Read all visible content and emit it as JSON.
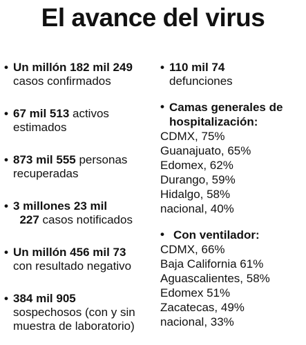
{
  "title": "El avance del virus",
  "bullet": "•",
  "left_items": [
    {
      "l1b": "Un millón 182 mil 249",
      "l2": "casos confirmados"
    },
    {
      "l1b": "67 mil 513",
      "l1r": " activos",
      "l2": "estimados"
    },
    {
      "l1b": "873 mil 555",
      "l1r": " personas",
      "l2": "recuperadas"
    },
    {
      "l1b": "3 millones 23 mil",
      "l2b": "227",
      "l2": " casos notificados"
    },
    {
      "l1b": "Un millón 456 mil 73",
      "l2": "con resultado negativo"
    },
    {
      "l1b": "384 mil 905",
      "l2": "sospechosos (con y sin",
      "l3": "muestra de laboratorio)"
    }
  ],
  "right": {
    "deaths": {
      "value": "110 mil 74",
      "label": "defunciones"
    },
    "beds": {
      "heading_1": "Camas generales de",
      "heading_2": "hospitalización:",
      "items": [
        "CDMX, 75%",
        "Guanajuato, 65%",
        "Edomex, 62%",
        "Durango, 59%",
        "Hidalgo, 58%",
        "nacional, 40%"
      ]
    },
    "ventilators": {
      "heading": "Con ventilador:",
      "items": [
        "CDMX, 66%",
        "Baja California 61%",
        "Aguascalientes, 58%",
        "Edomex 51%",
        "Zacatecas, 49%",
        "nacional, 33%"
      ]
    }
  }
}
